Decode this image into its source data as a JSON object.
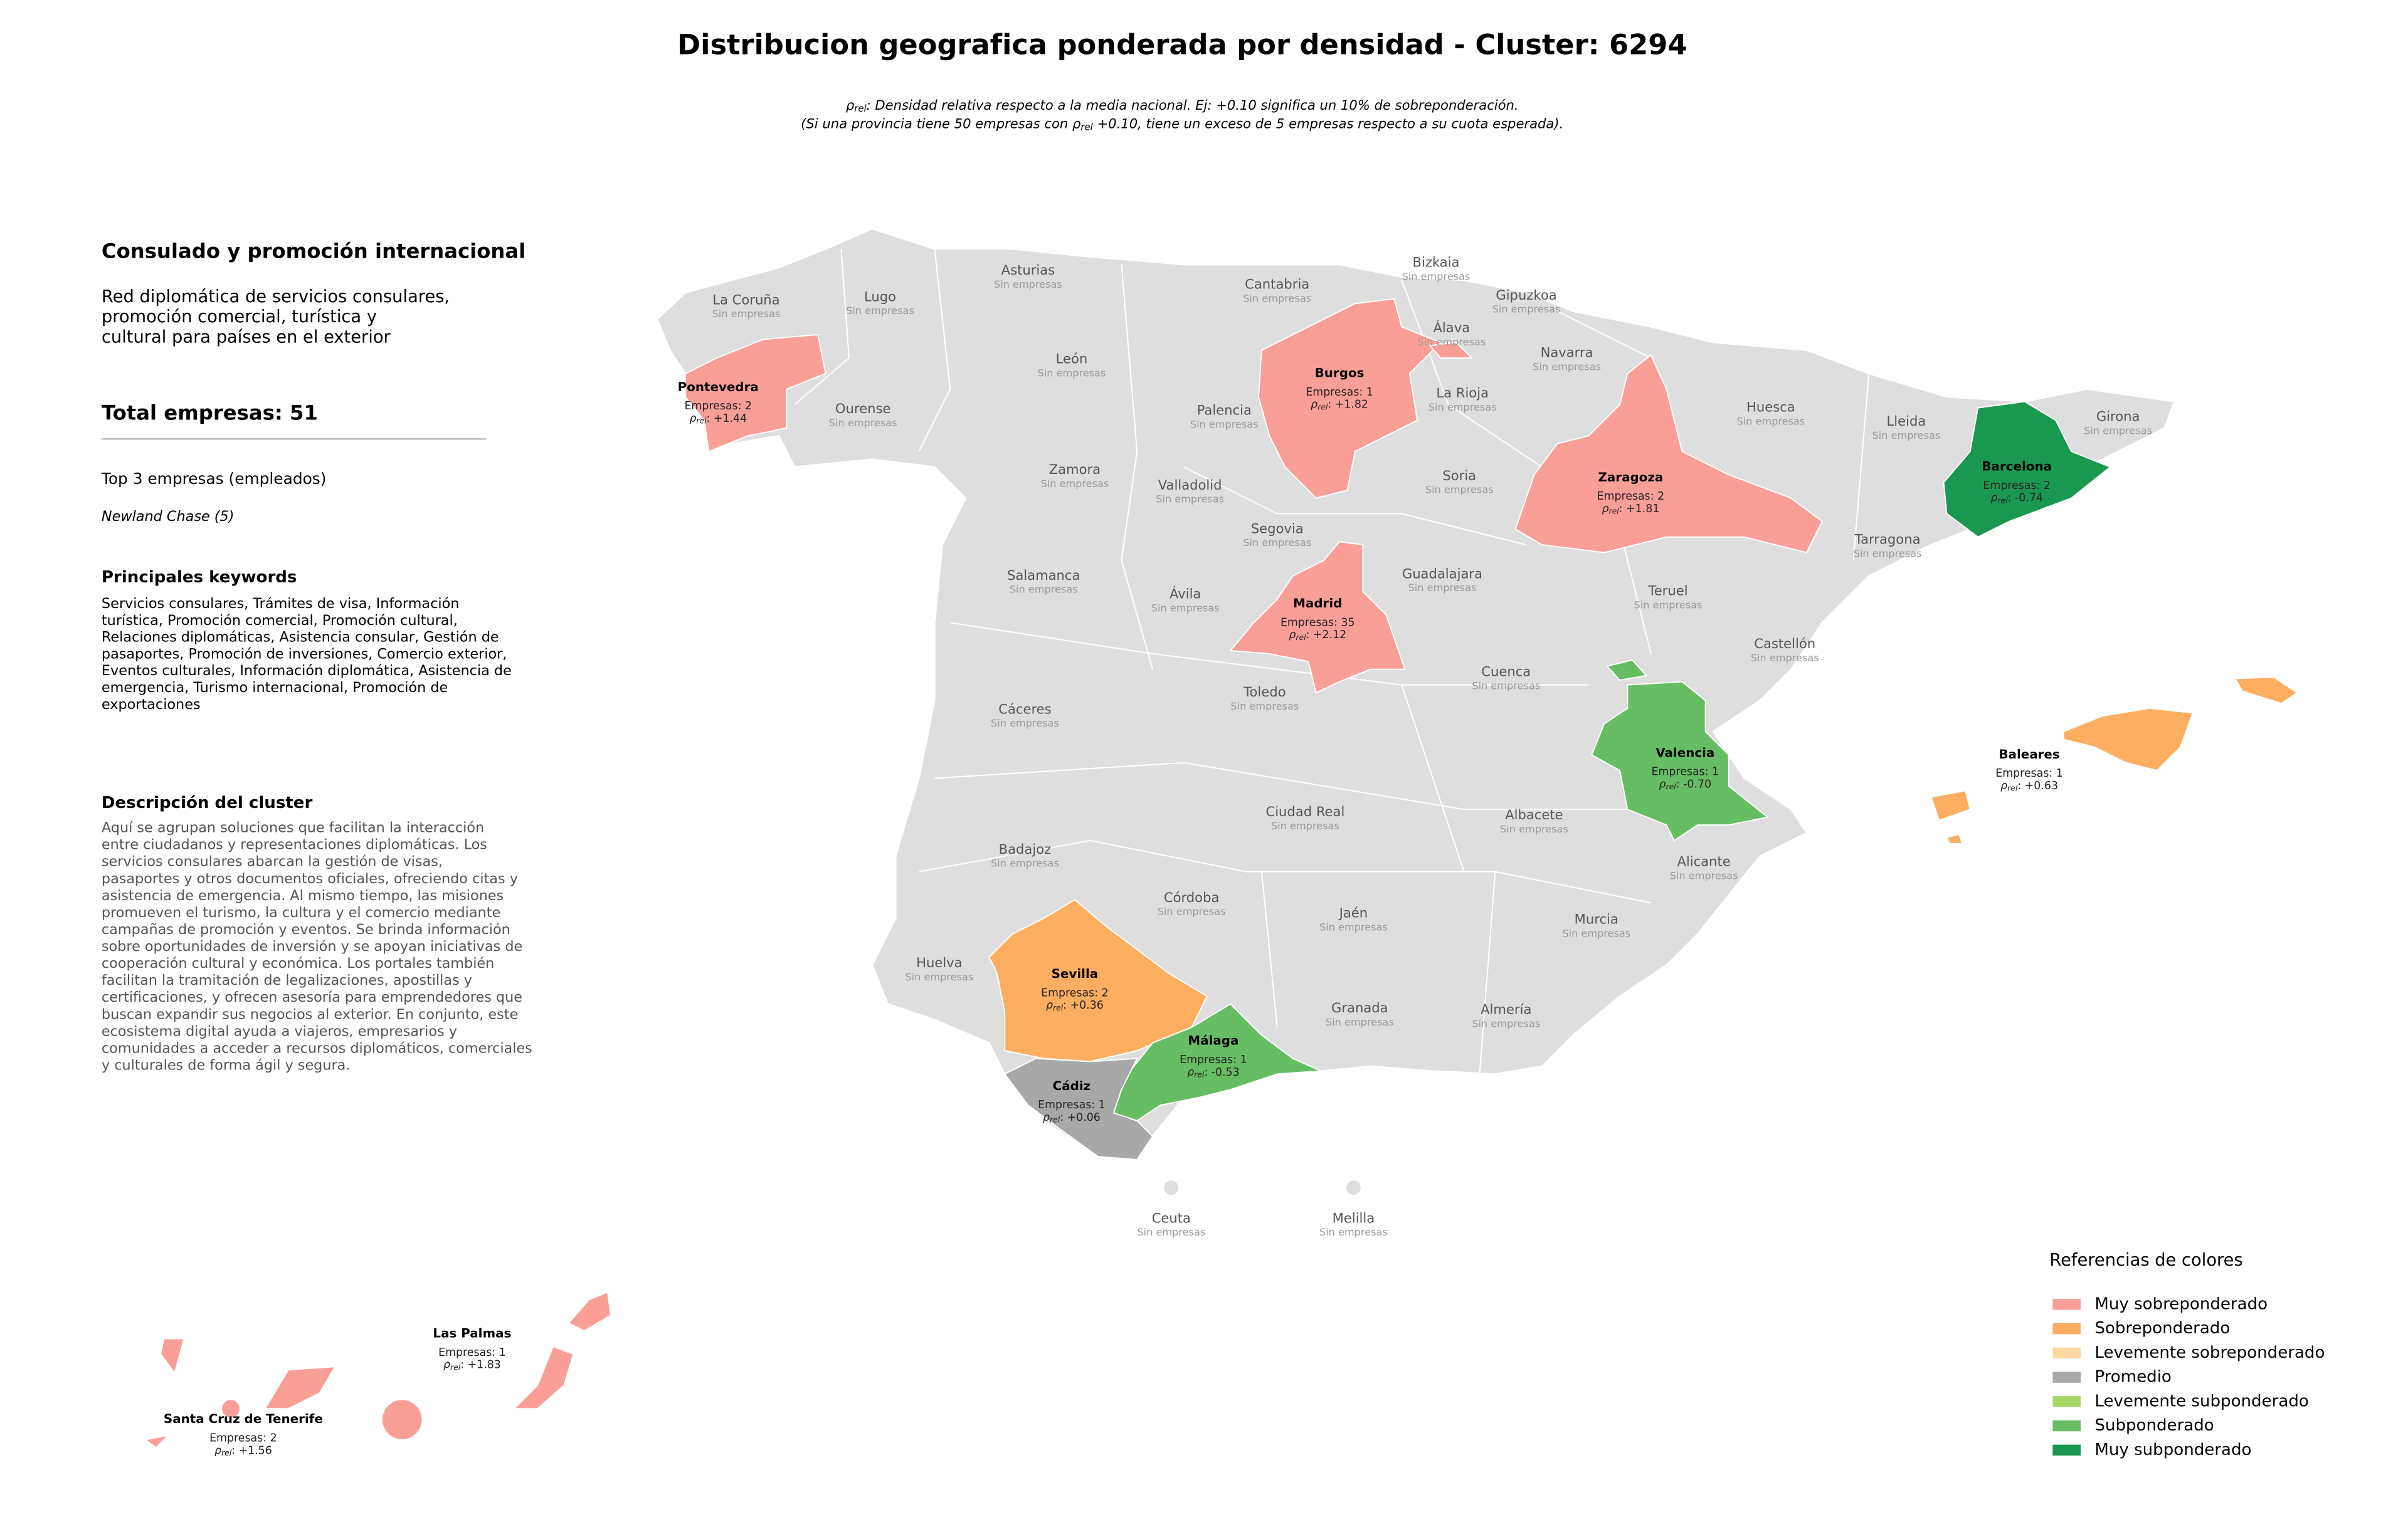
{
  "title": "Distribucion geografica ponderada por densidad - Cluster: 6294",
  "subtitle": {
    "symbol": "ρ",
    "sub": "rel",
    "line1": ": Densidad relativa respecto a la media nacional. Ej: +0.10 significa un 10% de sobreponderación.",
    "line2_pre": "(Si una provincia tiene 50 empresas con ",
    "line2_post": " +0.10, tiene un exceso de 5 empresas respecto a su cuota esperada)."
  },
  "panel": {
    "heading": "Consulado y promoción internacional",
    "summary": [
      "Red diplomática de servicios consulares,",
      "promoción comercial, turística y",
      "cultural para países en el exterior"
    ],
    "total": "Total empresas: 51",
    "top_heading": "Top 3 empresas (empleados)",
    "top": [
      "Newland Chase (5)"
    ],
    "keywords_heading": "Principales keywords",
    "keywords": [
      "Servicios consulares, Trámites de visa, Información",
      "turística, Promoción comercial, Promoción cultural,",
      "Relaciones diplomáticas, Asistencia consular, Gestión de",
      "pasaportes, Promoción de inversiones, Comercio exterior,",
      "Eventos culturales, Información diplomática, Asistencia de",
      "emergencia, Turismo internacional, Promoción de",
      "exportaciones"
    ],
    "description_heading": "Descripción del cluster",
    "description": [
      "Aquí se agrupan soluciones que facilitan la interacción",
      "entre ciudadanos y representaciones diplomáticas. Los",
      "servicios consulares abarcan la gestión de visas,",
      "pasaportes y otros documentos oficiales, ofreciendo citas y",
      "asistencia de emergencia. Al mismo tiempo, las misiones",
      "promueven el turismo, la cultura y el comercio mediante",
      "campañas de promoción y eventos. Se brinda información",
      "sobre oportunidades de inversión y se apoyan iniciativas de",
      "cooperación cultural y económica. Los portales también",
      "facilitan la tramitación de legalizaciones, apostillas y",
      "certificaciones, y ofrecen asesoría para emprendedores que",
      "buscan expandir sus negocios al exterior. En conjunto, este",
      "ecosistema digital ayuda a viajeros, empresarios y",
      "comunidades a acceder a recursos diplomáticos, comerciales",
      "y culturales de forma ágil y segura."
    ]
  },
  "map": {
    "no_data_label": "Sin empresas",
    "base_color": "#dedede",
    "rho_symbol": "ρ",
    "rho_sub": "rel",
    "rho_sep": ": ",
    "provinces": [
      {
        "name": "La Coruña"
      },
      {
        "name": "Lugo"
      },
      {
        "name": "Asturias"
      },
      {
        "name": "Cantabria"
      },
      {
        "name": "Bizkaia"
      },
      {
        "name": "Gipuzkoa"
      },
      {
        "name": "Álava"
      },
      {
        "name": "Navarra"
      },
      {
        "name": "La Rioja"
      },
      {
        "name": "Huesca"
      },
      {
        "name": "Lleida"
      },
      {
        "name": "Girona"
      },
      {
        "name": "Pontevedra",
        "empresas": "Empresas: 2",
        "rho": "+1.44",
        "category": 0
      },
      {
        "name": "Ourense"
      },
      {
        "name": "León"
      },
      {
        "name": "Palencia"
      },
      {
        "name": "Burgos",
        "empresas": "Empresas: 1",
        "rho": "+1.82",
        "category": 0
      },
      {
        "name": "Zamora"
      },
      {
        "name": "Valladolid"
      },
      {
        "name": "Soria"
      },
      {
        "name": "Zaragoza",
        "empresas": "Empresas: 2",
        "rho": "+1.81",
        "category": 0
      },
      {
        "name": "Barcelona",
        "empresas": "Empresas: 2",
        "rho": "-0.74",
        "category": 6
      },
      {
        "name": "Tarragona"
      },
      {
        "name": "Segovia"
      },
      {
        "name": "Salamanca"
      },
      {
        "name": "Ávila"
      },
      {
        "name": "Guadalajara"
      },
      {
        "name": "Madrid",
        "empresas": "Empresas: 35",
        "rho": "+2.12",
        "category": 0
      },
      {
        "name": "Teruel"
      },
      {
        "name": "Castellón"
      },
      {
        "name": "Cuenca"
      },
      {
        "name": "Toledo"
      },
      {
        "name": "Cáceres"
      },
      {
        "name": "Valencia",
        "empresas": "Empresas: 1",
        "rho": "-0.70",
        "category": 5
      },
      {
        "name": "Baleares",
        "empresas": "Empresas: 1",
        "rho": "+0.63",
        "category": 1
      },
      {
        "name": "Ciudad Real"
      },
      {
        "name": "Albacete"
      },
      {
        "name": "Badajoz"
      },
      {
        "name": "Alicante"
      },
      {
        "name": "Córdoba"
      },
      {
        "name": "Jaén"
      },
      {
        "name": "Murcia"
      },
      {
        "name": "Huelva"
      },
      {
        "name": "Sevilla",
        "empresas": "Empresas: 2",
        "rho": "+0.36",
        "category": 1
      },
      {
        "name": "Granada"
      },
      {
        "name": "Almería"
      },
      {
        "name": "Málaga",
        "empresas": "Empresas: 1",
        "rho": "-0.53",
        "category": 5
      },
      {
        "name": "Cádiz",
        "empresas": "Empresas: 1",
        "rho": "+0.06",
        "category": 3
      },
      {
        "name": "Ceuta"
      },
      {
        "name": "Melilla"
      },
      {
        "name": "Las Palmas",
        "empresas": "Empresas: 1",
        "rho": "+1.83",
        "category": 0
      },
      {
        "name": "Santa Cruz de Tenerife",
        "empresas": "Empresas: 2",
        "rho": "+1.56",
        "category": 0
      }
    ]
  },
  "legend": {
    "title": "Referencias de colores",
    "items": [
      {
        "name": "Muy sobreponderado",
        "color": "#fa9e98"
      },
      {
        "name": "Sobreponderado",
        "color": "#fdae61"
      },
      {
        "name": "Levemente sobreponderado",
        "color": "#fdd8a0"
      },
      {
        "name": "Promedio",
        "color": "#a8a8a8"
      },
      {
        "name": "Levemente subponderado",
        "color": "#a6d96a"
      },
      {
        "name": "Subponderado",
        "color": "#66bd63"
      },
      {
        "name": "Muy subponderado",
        "color": "#1a9850"
      }
    ]
  }
}
